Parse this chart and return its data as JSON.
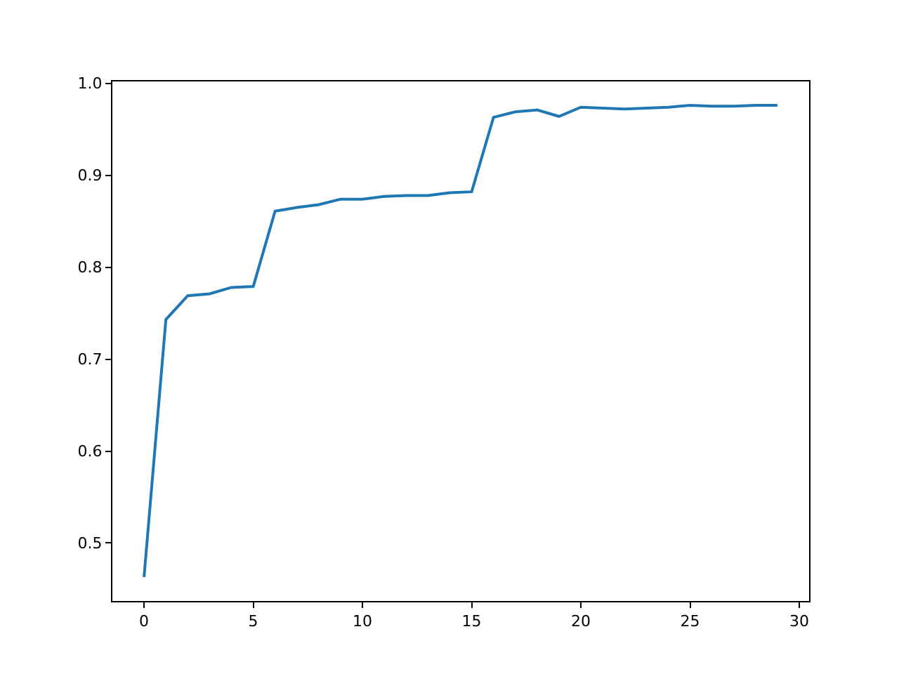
{
  "chart_data": {
    "type": "line",
    "x": [
      0,
      1,
      2,
      3,
      4,
      5,
      6,
      7,
      8,
      9,
      10,
      11,
      12,
      13,
      14,
      15,
      16,
      17,
      18,
      19,
      20,
      21,
      22,
      23,
      24,
      25,
      26,
      27,
      28,
      29
    ],
    "series": [
      {
        "color": "#1f77b4",
        "values": [
          0.463,
          0.743,
          0.769,
          0.771,
          0.778,
          0.779,
          0.861,
          0.865,
          0.868,
          0.874,
          0.874,
          0.877,
          0.878,
          0.878,
          0.881,
          0.882,
          0.963,
          0.969,
          0.971,
          0.964,
          0.974,
          0.973,
          0.972,
          0.973,
          0.974,
          0.976,
          0.975,
          0.975,
          0.976,
          0.976
        ]
      }
    ],
    "xlim": [
      -1.45,
      30.45
    ],
    "ylim": [
      0.437,
      1.002
    ],
    "xticks": [
      0,
      5,
      10,
      15,
      20,
      25,
      30
    ],
    "yticks": [
      {
        "value": 0.5,
        "label": "0.5"
      },
      {
        "value": 0.6,
        "label": "0.6"
      },
      {
        "value": 0.7,
        "label": "0.7"
      },
      {
        "value": 0.8,
        "label": "0.8"
      },
      {
        "value": 0.9,
        "label": "0.9"
      },
      {
        "value": 1.0,
        "label": "1.0"
      }
    ],
    "marker": "none",
    "line_style": "solid"
  }
}
